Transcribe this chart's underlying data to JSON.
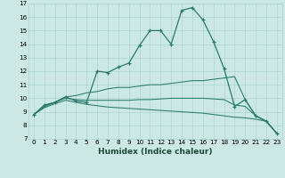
{
  "xlabel": "Humidex (Indice chaleur)",
  "bg_color": "#cce8e4",
  "grid_color": "#add4cf",
  "line_color": "#2a7a6a",
  "xlim": [
    -0.5,
    23.5
  ],
  "ylim": [
    7,
    17
  ],
  "xticks": [
    0,
    1,
    2,
    3,
    4,
    5,
    6,
    7,
    8,
    9,
    10,
    11,
    12,
    13,
    14,
    15,
    16,
    17,
    18,
    19,
    20,
    21,
    22,
    23
  ],
  "yticks": [
    7,
    8,
    9,
    10,
    11,
    12,
    13,
    14,
    15,
    16,
    17
  ],
  "series": [
    {
      "x": [
        0,
        1,
        2,
        3,
        4,
        5,
        6,
        7,
        8,
        9,
        10,
        11,
        12,
        13,
        14,
        15,
        16,
        17,
        18,
        19,
        20,
        21,
        22,
        23
      ],
      "y": [
        8.8,
        9.5,
        9.7,
        10.1,
        9.8,
        9.7,
        12.0,
        11.9,
        12.3,
        12.6,
        13.9,
        15.0,
        15.0,
        14.0,
        16.5,
        16.7,
        15.8,
        14.2,
        12.2,
        9.4,
        9.9,
        8.7,
        8.3,
        7.4
      ],
      "marker": true
    },
    {
      "x": [
        0,
        1,
        2,
        3,
        4,
        5,
        6,
        7,
        8,
        9,
        10,
        11,
        12,
        13,
        14,
        15,
        16,
        17,
        18,
        19,
        20,
        21,
        22,
        23
      ],
      "y": [
        8.8,
        9.4,
        9.7,
        10.1,
        10.2,
        10.4,
        10.5,
        10.7,
        10.8,
        10.8,
        10.9,
        11.0,
        11.0,
        11.1,
        11.2,
        11.3,
        11.3,
        11.4,
        11.5,
        11.6,
        9.9,
        8.7,
        8.3,
        7.4
      ],
      "marker": false
    },
    {
      "x": [
        0,
        1,
        2,
        3,
        4,
        5,
        6,
        7,
        8,
        9,
        10,
        11,
        12,
        13,
        14,
        15,
        16,
        17,
        18,
        19,
        20,
        21,
        22,
        23
      ],
      "y": [
        8.8,
        9.4,
        9.7,
        10.0,
        9.9,
        9.85,
        9.85,
        9.85,
        9.85,
        9.85,
        9.9,
        9.9,
        9.95,
        10.0,
        10.0,
        10.0,
        10.0,
        9.95,
        9.9,
        9.5,
        9.4,
        8.7,
        8.3,
        7.4
      ],
      "marker": false
    },
    {
      "x": [
        0,
        1,
        2,
        3,
        4,
        5,
        6,
        7,
        8,
        9,
        10,
        11,
        12,
        13,
        14,
        15,
        16,
        17,
        18,
        19,
        20,
        21,
        22,
        23
      ],
      "y": [
        8.8,
        9.3,
        9.6,
        9.85,
        9.7,
        9.55,
        9.45,
        9.35,
        9.3,
        9.25,
        9.2,
        9.15,
        9.1,
        9.05,
        9.0,
        8.95,
        8.9,
        8.8,
        8.7,
        8.6,
        8.55,
        8.45,
        8.3,
        7.4
      ],
      "marker": false
    }
  ],
  "xlabel_fontsize": 6.5,
  "xlabel_bold": true,
  "tick_fontsize": 5.2
}
